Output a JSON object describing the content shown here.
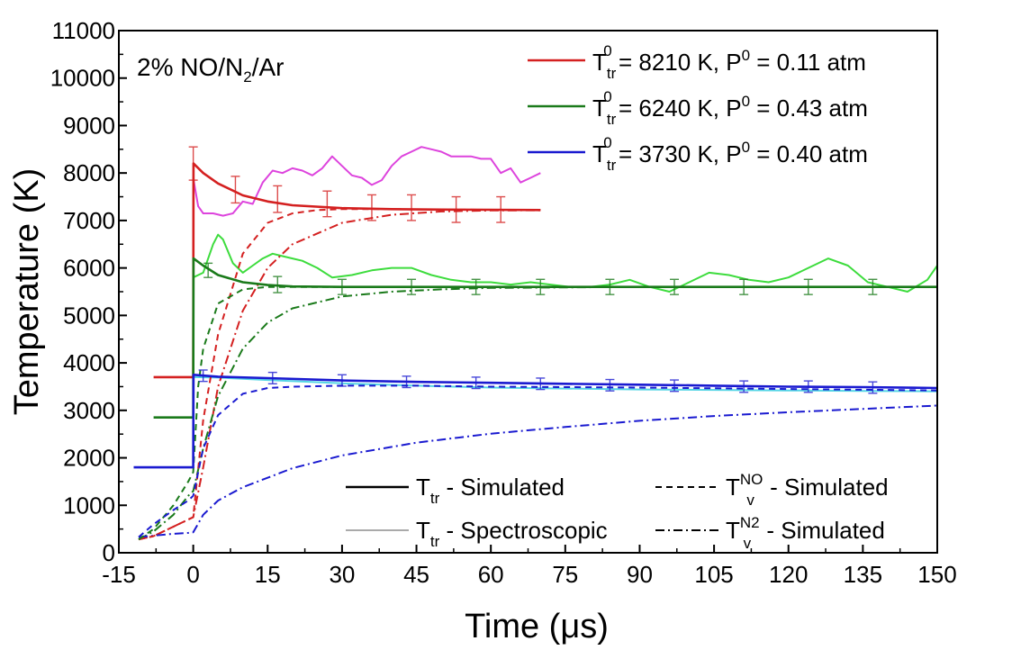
{
  "chart_data": {
    "type": "line",
    "annotation": "2% NO/N2/Ar",
    "xlabel": "Time (μs)",
    "ylabel": "Temperature (K)",
    "xlim": [
      -15,
      150
    ],
    "ylim": [
      0,
      11000
    ],
    "x_ticks": [
      "-15",
      "0",
      "15",
      "30",
      "45",
      "60",
      "75",
      "90",
      "105",
      "120",
      "135",
      "150"
    ],
    "y_ticks": [
      "0",
      "1000",
      "2000",
      "3000",
      "4000",
      "5000",
      "6000",
      "7000",
      "8000",
      "9000",
      "10000",
      "11000"
    ],
    "grid": false,
    "conditions": [
      {
        "label_main": "T",
        "label_sub": "tr",
        "label_sup": "0",
        "label_rest": " = 8210 K, P",
        "label_sup2": "0",
        "label_tail": " = 0.11 atm",
        "color": "#d42020",
        "spectro_color": "#dd44dd"
      },
      {
        "label_main": "T",
        "label_sub": "tr",
        "label_sup": "0",
        "label_rest": " = 6240 K, P",
        "label_sup2": "0",
        "label_tail": " = 0.43 atm",
        "color": "#1a7a1a",
        "spectro_color": "#3ddc3d"
      },
      {
        "label_main": "T",
        "label_sub": "tr",
        "label_sup": "0",
        "label_rest": " = 3730 K, P",
        "label_sup2": "0",
        "label_tail": " = 0.40 atm",
        "color": "#1a1ad0",
        "spectro_color": "#55d5e5"
      }
    ],
    "line_style_legend": [
      {
        "main": "T",
        "sub": "tr",
        "sup": "",
        "rest": " - Simulated",
        "style": "solid",
        "color": "#000000"
      },
      {
        "main": "T",
        "sub": "tr",
        "sup": "",
        "rest": " - Spectroscopic",
        "style": "solid-light",
        "color": "#aaaaaa"
      },
      {
        "main": "T",
        "sub": "v",
        "sup": "NO",
        "rest": " - Simulated",
        "style": "dash",
        "color": "#000000"
      },
      {
        "main": "T",
        "sub": "v",
        "sup": "N2",
        "rest": " - Simulated",
        "style": "dashdot",
        "color": "#000000"
      }
    ],
    "series": [
      {
        "name": "",
        "cond": 0,
        "kind": "Ttr-sim",
        "x": [
          -8,
          -0.1,
          0,
          0.05,
          2,
          5,
          10,
          15,
          20,
          30,
          40,
          50,
          60,
          70
        ],
        "y": [
          3700,
          3700,
          3700,
          8200,
          8000,
          7780,
          7530,
          7400,
          7320,
          7260,
          7240,
          7230,
          7225,
          7220
        ]
      },
      {
        "name": "",
        "cond": 0,
        "kind": "Tv-NO",
        "x": [
          -11,
          -8,
          -4,
          -1,
          0,
          2,
          5,
          10,
          15,
          20,
          25,
          30,
          40,
          50,
          60,
          70
        ],
        "y": [
          280,
          350,
          550,
          700,
          750,
          2800,
          4600,
          6300,
          6950,
          7150,
          7220,
          7240,
          7240,
          7230,
          7225,
          7220
        ]
      },
      {
        "name": "",
        "cond": 0,
        "kind": "Tv-N2",
        "x": [
          -11,
          -8,
          -4,
          -1,
          0,
          2,
          5,
          10,
          15,
          20,
          30,
          40,
          50,
          60,
          70
        ],
        "y": [
          280,
          350,
          550,
          700,
          750,
          1800,
          3500,
          5100,
          6000,
          6500,
          6950,
          7120,
          7190,
          7210,
          7215
        ]
      },
      {
        "name": "",
        "cond": 0,
        "kind": "Ttr-spec",
        "x": [
          0,
          1,
          2,
          4,
          6,
          8,
          10,
          12,
          14,
          16,
          18,
          20,
          22,
          24,
          26,
          28,
          30,
          32,
          34,
          36,
          38,
          40,
          42,
          44,
          46,
          48,
          50,
          52,
          54,
          56,
          58,
          60,
          62,
          64,
          66,
          68,
          70
        ],
        "y": [
          7900,
          7300,
          7150,
          7150,
          7100,
          7150,
          7400,
          7350,
          7800,
          8050,
          8000,
          8100,
          8050,
          7950,
          8100,
          8350,
          8150,
          7950,
          7900,
          7750,
          7850,
          8150,
          8350,
          8450,
          8550,
          8500,
          8450,
          8350,
          8350,
          8350,
          8300,
          8300,
          8000,
          8100,
          7800,
          7900,
          8000
        ]
      },
      {
        "name": "",
        "cond": 1,
        "kind": "Ttr-sim",
        "x": [
          -8,
          -0.1,
          0,
          0.05,
          2,
          5,
          10,
          15,
          20,
          30,
          45,
          60,
          90,
          120,
          150
        ],
        "y": [
          2850,
          2850,
          2850,
          6200,
          6050,
          5850,
          5700,
          5640,
          5610,
          5600,
          5600,
          5600,
          5600,
          5600,
          5600
        ]
      },
      {
        "name": "",
        "cond": 1,
        "kind": "Tv-NO",
        "x": [
          -11,
          -8,
          -4,
          -1,
          0,
          1,
          2,
          5,
          10,
          15,
          20,
          30,
          45,
          60,
          90,
          150
        ],
        "y": [
          280,
          500,
          1000,
          1500,
          1700,
          3500,
          4300,
          5250,
          5550,
          5600,
          5600,
          5600,
          5600,
          5600,
          5600,
          5600
        ]
      },
      {
        "name": "",
        "cond": 1,
        "kind": "Tv-N2",
        "x": [
          -11,
          -8,
          -4,
          -1,
          0,
          2,
          5,
          10,
          15,
          20,
          30,
          40,
          50,
          60,
          90,
          150
        ],
        "y": [
          280,
          450,
          800,
          1200,
          1300,
          2200,
          3300,
          4300,
          4850,
          5150,
          5400,
          5500,
          5550,
          5580,
          5600,
          5600
        ]
      },
      {
        "name": "",
        "cond": 1,
        "kind": "Ttr-spec",
        "x": [
          0,
          2,
          4,
          5,
          6,
          8,
          10,
          12,
          14,
          16,
          18,
          20,
          22,
          25,
          28,
          32,
          36,
          40,
          44,
          48,
          52,
          56,
          60,
          64,
          68,
          72,
          76,
          80,
          84,
          88,
          92,
          96,
          100,
          104,
          108,
          112,
          116,
          120,
          124,
          128,
          132,
          136,
          140,
          144,
          148,
          150
        ],
        "y": [
          5800,
          5900,
          6500,
          6700,
          6600,
          6100,
          5900,
          6050,
          6200,
          6300,
          6250,
          6200,
          6150,
          6000,
          5800,
          5850,
          5950,
          6000,
          6000,
          5850,
          5750,
          5700,
          5700,
          5650,
          5700,
          5650,
          5600,
          5600,
          5650,
          5750,
          5600,
          5500,
          5700,
          5900,
          5850,
          5750,
          5700,
          5800,
          6000,
          6200,
          6050,
          5700,
          5600,
          5500,
          5750,
          6050
        ]
      },
      {
        "name": "",
        "cond": 2,
        "kind": "Ttr-sim",
        "x": [
          -12,
          -0.1,
          0,
          0.05,
          5,
          15,
          30,
          45,
          60,
          75,
          90,
          105,
          120,
          135,
          150
        ],
        "y": [
          1800,
          1800,
          1800,
          3750,
          3710,
          3680,
          3630,
          3600,
          3580,
          3560,
          3540,
          3520,
          3500,
          3490,
          3470
        ]
      },
      {
        "name": "",
        "cond": 2,
        "kind": "Tv-NO",
        "x": [
          -11,
          -8,
          -4,
          -1,
          0,
          2,
          5,
          10,
          15,
          20,
          30,
          45,
          60,
          90,
          120,
          150
        ],
        "y": [
          330,
          600,
          900,
          1100,
          1200,
          2200,
          2900,
          3350,
          3470,
          3500,
          3520,
          3520,
          3500,
          3480,
          3450,
          3420
        ]
      },
      {
        "name": "",
        "cond": 2,
        "kind": "Tv-N2",
        "x": [
          -11,
          -8,
          -4,
          -1,
          0,
          2,
          5,
          10,
          20,
          30,
          45,
          60,
          75,
          90,
          105,
          120,
          135,
          150
        ],
        "y": [
          330,
          360,
          400,
          420,
          430,
          800,
          1100,
          1380,
          1780,
          2050,
          2320,
          2510,
          2650,
          2780,
          2880,
          2960,
          3030,
          3100
        ]
      },
      {
        "name": "",
        "cond": 2,
        "kind": "Ttr-spec",
        "x": [
          0,
          5,
          15,
          30,
          45,
          60,
          75,
          90,
          105,
          120,
          135,
          150
        ],
        "y": [
          3700,
          3690,
          3640,
          3570,
          3520,
          3480,
          3460,
          3440,
          3430,
          3420,
          3410,
          3400
        ]
      }
    ],
    "error_bars": [
      {
        "cond": 0,
        "x": [
          0,
          8.5,
          17,
          27,
          36,
          44,
          53,
          62
        ],
        "y": [
          8200,
          7650,
          7450,
          7350,
          7270,
          7270,
          7230,
          7230
        ],
        "err": [
          350,
          280,
          280,
          270,
          270,
          270,
          270,
          270
        ]
      },
      {
        "cond": 1,
        "x": [
          3,
          17,
          30,
          44,
          57,
          70,
          84,
          97,
          111,
          124,
          137
        ],
        "y": [
          5950,
          5650,
          5600,
          5600,
          5600,
          5600,
          5600,
          5600,
          5600,
          5600,
          5600
        ],
        "err": [
          150,
          170,
          160,
          160,
          160,
          160,
          160,
          160,
          160,
          160,
          160
        ]
      },
      {
        "cond": 2,
        "x": [
          2,
          16,
          30,
          43,
          57,
          70,
          84,
          97,
          111,
          124,
          137
        ],
        "y": [
          3730,
          3680,
          3630,
          3600,
          3580,
          3560,
          3530,
          3520,
          3500,
          3500,
          3480
        ]
      }
    ]
  }
}
